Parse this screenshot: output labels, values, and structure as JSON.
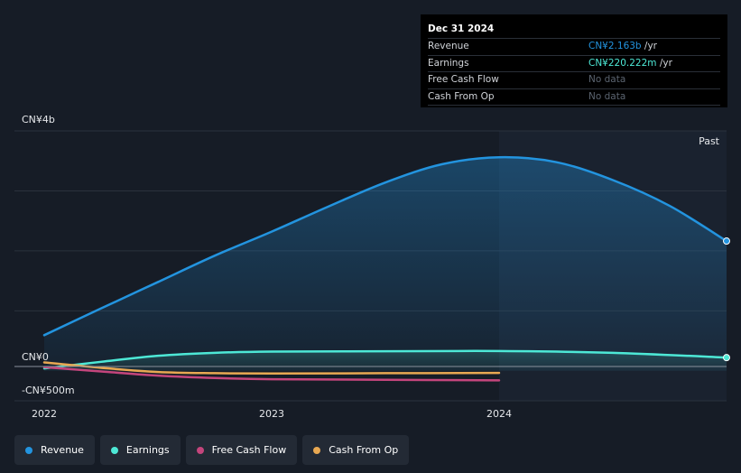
{
  "tooltip": {
    "date": "Dec 31 2024",
    "rows": [
      {
        "label": "Revenue",
        "value": "CN¥2.163b",
        "unit": " /yr",
        "color": "#2394df"
      },
      {
        "label": "Earnings",
        "value": "CN¥220.222m",
        "unit": " /yr",
        "color": "#4de8d6"
      },
      {
        "label": "Free Cash Flow",
        "value": "No data",
        "unit": "",
        "color": "#5b6470"
      },
      {
        "label": "Cash From Op",
        "value": "No data",
        "unit": "",
        "color": "#5b6470"
      }
    ]
  },
  "legend": [
    {
      "label": "Revenue",
      "color": "#2394df"
    },
    {
      "label": "Earnings",
      "color": "#4de8d6"
    },
    {
      "label": "Free Cash Flow",
      "color": "#c4457c"
    },
    {
      "label": "Cash From Op",
      "color": "#e8a852"
    }
  ],
  "chart_data": {
    "type": "area",
    "past_label": "Past",
    "y_tick_labels": [
      "CN¥4b",
      "CN¥0",
      "-CN¥500m"
    ],
    "x_tick_labels": [
      "2022",
      "2023",
      "2024"
    ],
    "ylim": [
      -500,
      4000
    ],
    "y_unit": "CN¥ millions",
    "xlim": [
      2021.88,
      2025.0
    ],
    "series": [
      {
        "name": "Revenue",
        "color": "#2394df",
        "fill": true,
        "end_marker": true,
        "x": [
          2022.0,
          2022.25,
          2022.5,
          2022.75,
          2023.0,
          2023.25,
          2023.5,
          2023.75,
          2024.0,
          2024.25,
          2024.5,
          2024.75,
          2025.0
        ],
        "values": [
          594,
          1040,
          1480,
          1920,
          2320,
          2740,
          3140,
          3445,
          3560,
          3480,
          3180,
          2750,
          2163
        ]
      },
      {
        "name": "Earnings",
        "color": "#4de8d6",
        "fill": true,
        "end_marker": true,
        "x": [
          2022.0,
          2022.25,
          2022.5,
          2022.75,
          2023.0,
          2023.5,
          2024.0,
          2024.5,
          2025.0
        ],
        "values": [
          40,
          150,
          250,
          300,
          320,
          325,
          330,
          300,
          220
        ]
      },
      {
        "name": "Free Cash Flow",
        "color": "#c4457c",
        "fill": false,
        "end_marker": false,
        "x": [
          2022.0,
          2022.25,
          2022.5,
          2022.75,
          2023.0,
          2023.5,
          2024.0
        ],
        "values": [
          60,
          -10,
          -80,
          -120,
          -140,
          -150,
          -160
        ]
      },
      {
        "name": "Cash From Op",
        "color": "#e8a852",
        "fill": false,
        "end_marker": false,
        "x": [
          2022.0,
          2022.25,
          2022.5,
          2022.75,
          2023.0,
          2023.5,
          2024.0
        ],
        "values": [
          140,
          50,
          -20,
          -40,
          -45,
          -40,
          -35
        ]
      }
    ]
  }
}
